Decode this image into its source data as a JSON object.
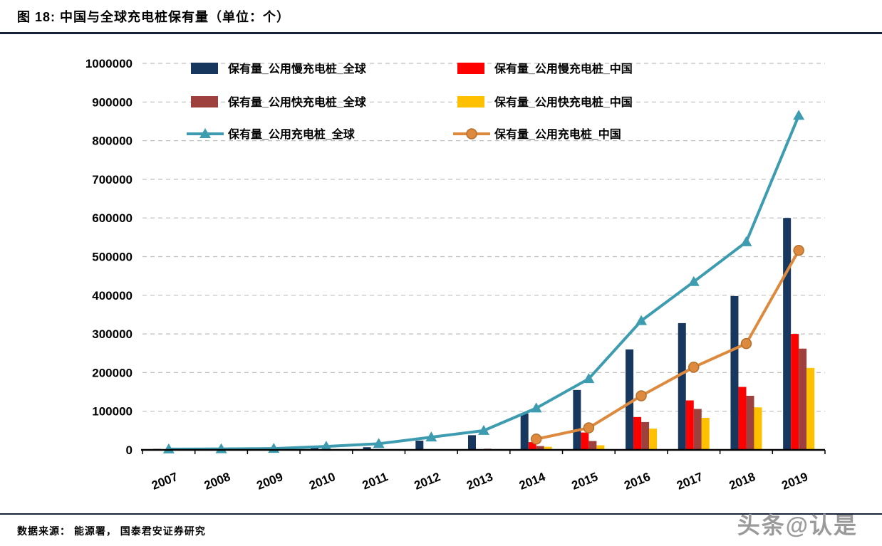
{
  "header": {
    "title": "图 18:  中国与全球充电桩保有量（单位：个）"
  },
  "footer": {
    "source": "数据来源：  能源署，  国泰君安证券研究",
    "watermark": "头条@认是"
  },
  "colors": {
    "rule": "#152238",
    "grid": "#bfbfbf",
    "axis": "#000000",
    "text": "#000000",
    "watermark": "#9a9a9a"
  },
  "chart_data": {
    "type": "bar",
    "title": "中国与全球充电桩保有量（单位：个）",
    "xlabel": "",
    "ylabel": "",
    "ylim": [
      0,
      1000000
    ],
    "ytick": 100000,
    "grid": "horizontal-dashed",
    "legend_position": "top-inside",
    "categories": [
      "2007",
      "2008",
      "2009",
      "2010",
      "2011",
      "2012",
      "2013",
      "2014",
      "2015",
      "2016",
      "2017",
      "2018",
      "2019"
    ],
    "series": [
      {
        "name": "保有量_公用慢充电桩_全球",
        "type": "bar",
        "color": "#17375E",
        "values": [
          2500,
          1500,
          2000,
          5000,
          7000,
          24000,
          38000,
          94000,
          155000,
          260000,
          328000,
          398000,
          600000
        ]
      },
      {
        "name": "保有量_公用慢充电桩_中国",
        "type": "bar",
        "color": "#FF0000",
        "values": [
          null,
          null,
          null,
          null,
          null,
          null,
          null,
          20000,
          45000,
          85000,
          128000,
          163000,
          300000
        ]
      },
      {
        "name": "保有量_公用快充电桩_全球",
        "type": "bar",
        "color": "#9E413E",
        "values": [
          null,
          null,
          null,
          null,
          null,
          1000,
          3000,
          10000,
          23000,
          72000,
          106000,
          140000,
          262000
        ]
      },
      {
        "name": "保有量_公用快充电桩_中国",
        "type": "bar",
        "color": "#FFC000",
        "values": [
          null,
          null,
          null,
          null,
          null,
          null,
          null,
          8000,
          12000,
          55000,
          83000,
          110000,
          212000
        ]
      },
      {
        "name": "保有量_公用充电桩_全球",
        "type": "line",
        "marker": "triangle",
        "color": "#3E9CB0",
        "values": [
          2000,
          2500,
          3500,
          9000,
          16000,
          33000,
          50000,
          108000,
          184000,
          334000,
          435000,
          538000,
          865000
        ]
      },
      {
        "name": "保有量_公用充电桩_中国",
        "type": "line",
        "marker": "circle",
        "color": "#DD8A3E",
        "marker_stroke": "#B5702C",
        "values": [
          null,
          null,
          null,
          null,
          null,
          null,
          null,
          28000,
          57000,
          140000,
          214000,
          275000,
          516000
        ]
      }
    ]
  }
}
